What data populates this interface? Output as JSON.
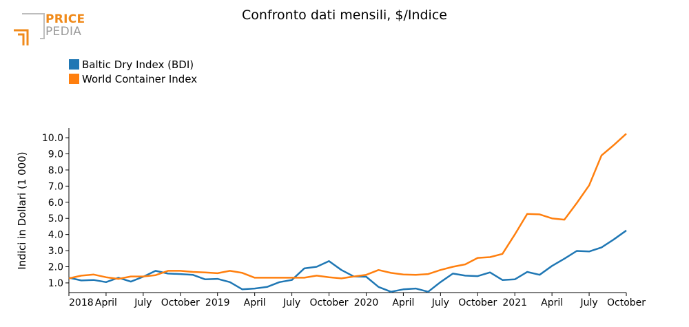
{
  "logo": {
    "line1": "PRICE",
    "line2": "PEDIA"
  },
  "chart_data": {
    "type": "line",
    "title": "Confronto dati mensili, $/Indice",
    "ylabel": "Indici in Dollari (1 000)",
    "xlabel": "",
    "legend_position": "top-left",
    "grid": false,
    "ylim": [
      0.4,
      10.6
    ],
    "yticks": [
      "1.0",
      "2.0",
      "3.0",
      "4.0",
      "5.0",
      "6.0",
      "7.0",
      "8.0",
      "9.0",
      "10.0"
    ],
    "x": [
      "2018-01",
      "2018-02",
      "2018-03",
      "2018-04",
      "2018-05",
      "2018-06",
      "2018-07",
      "2018-08",
      "2018-09",
      "2018-10",
      "2018-11",
      "2018-12",
      "2019-01",
      "2019-02",
      "2019-03",
      "2019-04",
      "2019-05",
      "2019-06",
      "2019-07",
      "2019-08",
      "2019-09",
      "2019-10",
      "2019-11",
      "2019-12",
      "2020-01",
      "2020-02",
      "2020-03",
      "2020-04",
      "2020-05",
      "2020-06",
      "2020-07",
      "2020-08",
      "2020-09",
      "2020-10",
      "2020-11",
      "2020-12",
      "2021-01",
      "2021-02",
      "2021-03",
      "2021-04",
      "2021-05",
      "2021-06",
      "2021-07",
      "2021-08",
      "2021-09",
      "2021-10"
    ],
    "xticks": [
      {
        "label": "2018",
        "index": 0
      },
      {
        "label": "April",
        "index": 3
      },
      {
        "label": "July",
        "index": 6
      },
      {
        "label": "October",
        "index": 9
      },
      {
        "label": "2019",
        "index": 12
      },
      {
        "label": "April",
        "index": 15
      },
      {
        "label": "July",
        "index": 18
      },
      {
        "label": "October",
        "index": 21
      },
      {
        "label": "2020",
        "index": 24
      },
      {
        "label": "April",
        "index": 27
      },
      {
        "label": "July",
        "index": 30
      },
      {
        "label": "October",
        "index": 33
      },
      {
        "label": "2021",
        "index": 36
      },
      {
        "label": "April",
        "index": 39
      },
      {
        "label": "July",
        "index": 42
      },
      {
        "label": "October",
        "index": 45
      }
    ],
    "series": [
      {
        "name": "Baltic Dry Index (BDI)",
        "color": "#1f77b4",
        "values": [
          1.32,
          1.15,
          1.18,
          1.05,
          1.32,
          1.08,
          1.38,
          1.75,
          1.58,
          1.55,
          1.5,
          1.22,
          1.25,
          1.05,
          0.6,
          0.65,
          0.75,
          1.05,
          1.18,
          1.9,
          2.0,
          2.35,
          1.8,
          1.4,
          1.38,
          0.75,
          0.45,
          0.6,
          0.65,
          0.45,
          1.05,
          1.58,
          1.45,
          1.42,
          1.65,
          1.18,
          1.22,
          1.68,
          1.5,
          2.05,
          2.5,
          2.98,
          2.95,
          3.2,
          3.7,
          4.25
        ]
      },
      {
        "name": "World Container Index",
        "color": "#ff7f0e",
        "values": [
          1.28,
          1.45,
          1.52,
          1.35,
          1.25,
          1.4,
          1.4,
          1.48,
          1.75,
          1.75,
          1.68,
          1.65,
          1.6,
          1.75,
          1.62,
          1.32,
          1.32,
          1.32,
          1.32,
          1.32,
          1.45,
          1.35,
          1.28,
          1.4,
          1.5,
          1.8,
          1.62,
          1.52,
          1.5,
          1.55,
          1.8,
          2.0,
          2.15,
          2.55,
          2.6,
          2.8,
          4.0,
          5.28,
          5.25,
          5.0,
          4.92,
          5.95,
          7.05,
          8.9,
          9.55,
          10.25
        ]
      }
    ]
  }
}
